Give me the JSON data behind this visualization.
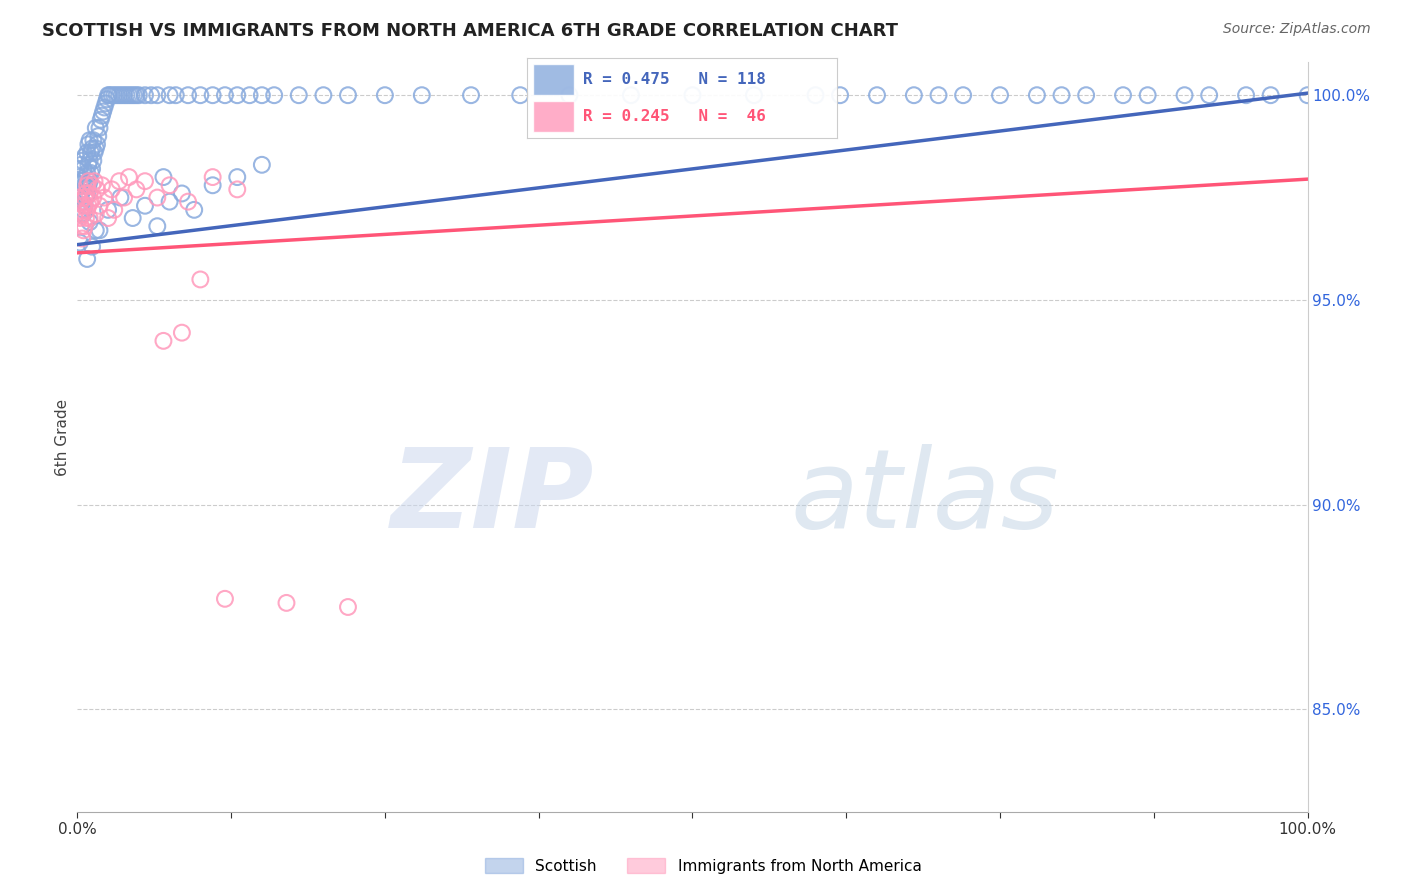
{
  "title": "SCOTTISH VS IMMIGRANTS FROM NORTH AMERICA 6TH GRADE CORRELATION CHART",
  "source": "Source: ZipAtlas.com",
  "ylabel": "6th Grade",
  "blue_color": "#88AADD",
  "pink_color": "#FF99BB",
  "blue_line_color": "#4466BB",
  "pink_line_color": "#FF5577",
  "legend_label_blue": "Scottish",
  "legend_label_pink": "Immigrants from North America",
  "ylim_min": 0.825,
  "ylim_max": 1.008,
  "blue_r": "R = 0.475",
  "blue_n": "N = 118",
  "pink_r": "R = 0.245",
  "pink_n": "N =  46",
  "blue_intercept": 0.9635,
  "blue_slope": 0.037,
  "pink_intercept": 0.9615,
  "pink_slope": 0.018,
  "blue_x": [
    0.001,
    0.002,
    0.002,
    0.003,
    0.003,
    0.003,
    0.004,
    0.004,
    0.004,
    0.005,
    0.005,
    0.005,
    0.006,
    0.006,
    0.006,
    0.007,
    0.007,
    0.008,
    0.008,
    0.008,
    0.009,
    0.009,
    0.009,
    0.01,
    0.01,
    0.01,
    0.011,
    0.011,
    0.012,
    0.012,
    0.013,
    0.013,
    0.014,
    0.015,
    0.015,
    0.016,
    0.017,
    0.018,
    0.019,
    0.02,
    0.021,
    0.022,
    0.023,
    0.024,
    0.025,
    0.026,
    0.028,
    0.03,
    0.032,
    0.034,
    0.036,
    0.038,
    0.04,
    0.042,
    0.044,
    0.046,
    0.048,
    0.05,
    0.055,
    0.06,
    0.065,
    0.07,
    0.075,
    0.08,
    0.09,
    0.1,
    0.11,
    0.12,
    0.13,
    0.14,
    0.15,
    0.16,
    0.18,
    0.2,
    0.22,
    0.25,
    0.28,
    0.32,
    0.36,
    0.4,
    0.45,
    0.5,
    0.55,
    0.6,
    0.62,
    0.65,
    0.68,
    0.7,
    0.72,
    0.75,
    0.78,
    0.8,
    0.82,
    0.85,
    0.87,
    0.9,
    0.92,
    0.95,
    0.97,
    1.0,
    0.005,
    0.01,
    0.015,
    0.002,
    0.008,
    0.012,
    0.018,
    0.025,
    0.035,
    0.045,
    0.055,
    0.065,
    0.075,
    0.085,
    0.095,
    0.11,
    0.13,
    0.15
  ],
  "blue_y": [
    0.98,
    0.975,
    0.982,
    0.971,
    0.976,
    0.983,
    0.974,
    0.979,
    0.984,
    0.972,
    0.977,
    0.982,
    0.973,
    0.978,
    0.985,
    0.975,
    0.98,
    0.976,
    0.981,
    0.986,
    0.978,
    0.983,
    0.988,
    0.979,
    0.984,
    0.989,
    0.981,
    0.986,
    0.982,
    0.987,
    0.984,
    0.989,
    0.986,
    0.987,
    0.992,
    0.988,
    0.99,
    0.992,
    0.994,
    0.995,
    0.996,
    0.997,
    0.998,
    0.999,
    1.0,
    1.0,
    1.0,
    1.0,
    1.0,
    1.0,
    1.0,
    1.0,
    1.0,
    1.0,
    1.0,
    1.0,
    1.0,
    1.0,
    1.0,
    1.0,
    1.0,
    0.98,
    1.0,
    1.0,
    1.0,
    1.0,
    1.0,
    1.0,
    1.0,
    1.0,
    1.0,
    1.0,
    1.0,
    1.0,
    1.0,
    1.0,
    1.0,
    1.0,
    1.0,
    1.0,
    1.0,
    1.0,
    1.0,
    1.0,
    1.0,
    1.0,
    1.0,
    1.0,
    1.0,
    1.0,
    1.0,
    1.0,
    1.0,
    1.0,
    1.0,
    1.0,
    1.0,
    1.0,
    1.0,
    1.0,
    0.971,
    0.969,
    0.967,
    0.964,
    0.96,
    0.963,
    0.967,
    0.972,
    0.975,
    0.97,
    0.973,
    0.968,
    0.974,
    0.976,
    0.972,
    0.978,
    0.98,
    0.983
  ],
  "pink_x": [
    0.001,
    0.002,
    0.003,
    0.003,
    0.004,
    0.004,
    0.005,
    0.005,
    0.006,
    0.006,
    0.007,
    0.007,
    0.008,
    0.008,
    0.009,
    0.009,
    0.01,
    0.01,
    0.011,
    0.012,
    0.013,
    0.014,
    0.015,
    0.016,
    0.018,
    0.02,
    0.022,
    0.025,
    0.028,
    0.03,
    0.034,
    0.038,
    0.042,
    0.048,
    0.055,
    0.065,
    0.075,
    0.09,
    0.11,
    0.13,
    0.07,
    0.085,
    0.1,
    0.12,
    0.17,
    0.22
  ],
  "pink_y": [
    0.975,
    0.97,
    0.968,
    0.974,
    0.965,
    0.971,
    0.967,
    0.973,
    0.968,
    0.975,
    0.97,
    0.976,
    0.972,
    0.978,
    0.973,
    0.979,
    0.97,
    0.976,
    0.974,
    0.978,
    0.975,
    0.979,
    0.971,
    0.977,
    0.973,
    0.978,
    0.975,
    0.97,
    0.977,
    0.972,
    0.979,
    0.975,
    0.98,
    0.977,
    0.979,
    0.975,
    0.978,
    0.974,
    0.98,
    0.977,
    0.94,
    0.942,
    0.955,
    0.877,
    0.876,
    0.875
  ]
}
